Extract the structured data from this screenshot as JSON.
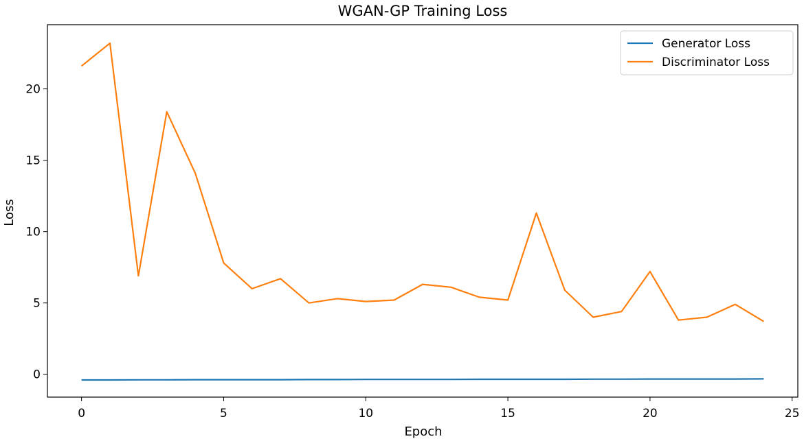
{
  "chart_data": {
    "type": "line",
    "title": "WGAN-GP Training Loss",
    "xlabel": "Epoch",
    "ylabel": "Loss",
    "xlim": [
      -1.2,
      25.2
    ],
    "ylim": [
      -1.6,
      24.5
    ],
    "xticks": [
      0,
      5,
      10,
      15,
      20,
      25
    ],
    "yticks": [
      0,
      5,
      10,
      15,
      20
    ],
    "grid": false,
    "legend_position": "top-right",
    "x": [
      0,
      1,
      2,
      3,
      4,
      5,
      6,
      7,
      8,
      9,
      10,
      11,
      12,
      13,
      14,
      15,
      16,
      17,
      18,
      19,
      20,
      21,
      22,
      23,
      24
    ],
    "series": [
      {
        "name": "Generator Loss",
        "color": "#1f77b4",
        "values": [
          -0.4,
          -0.4,
          -0.39,
          -0.39,
          -0.38,
          -0.38,
          -0.38,
          -0.38,
          -0.37,
          -0.37,
          -0.36,
          -0.36,
          -0.36,
          -0.36,
          -0.35,
          -0.35,
          -0.35,
          -0.35,
          -0.34,
          -0.34,
          -0.33,
          -0.33,
          -0.33,
          -0.33,
          -0.32
        ]
      },
      {
        "name": "Discriminator Loss",
        "color": "#ff7f0e",
        "values": [
          21.6,
          23.2,
          6.9,
          18.4,
          14.1,
          7.8,
          6.0,
          6.7,
          5.0,
          5.3,
          5.1,
          5.2,
          6.3,
          6.1,
          5.4,
          5.2,
          11.3,
          5.9,
          4.0,
          4.4,
          7.2,
          3.8,
          4.0,
          4.9,
          3.7
        ]
      }
    ]
  }
}
